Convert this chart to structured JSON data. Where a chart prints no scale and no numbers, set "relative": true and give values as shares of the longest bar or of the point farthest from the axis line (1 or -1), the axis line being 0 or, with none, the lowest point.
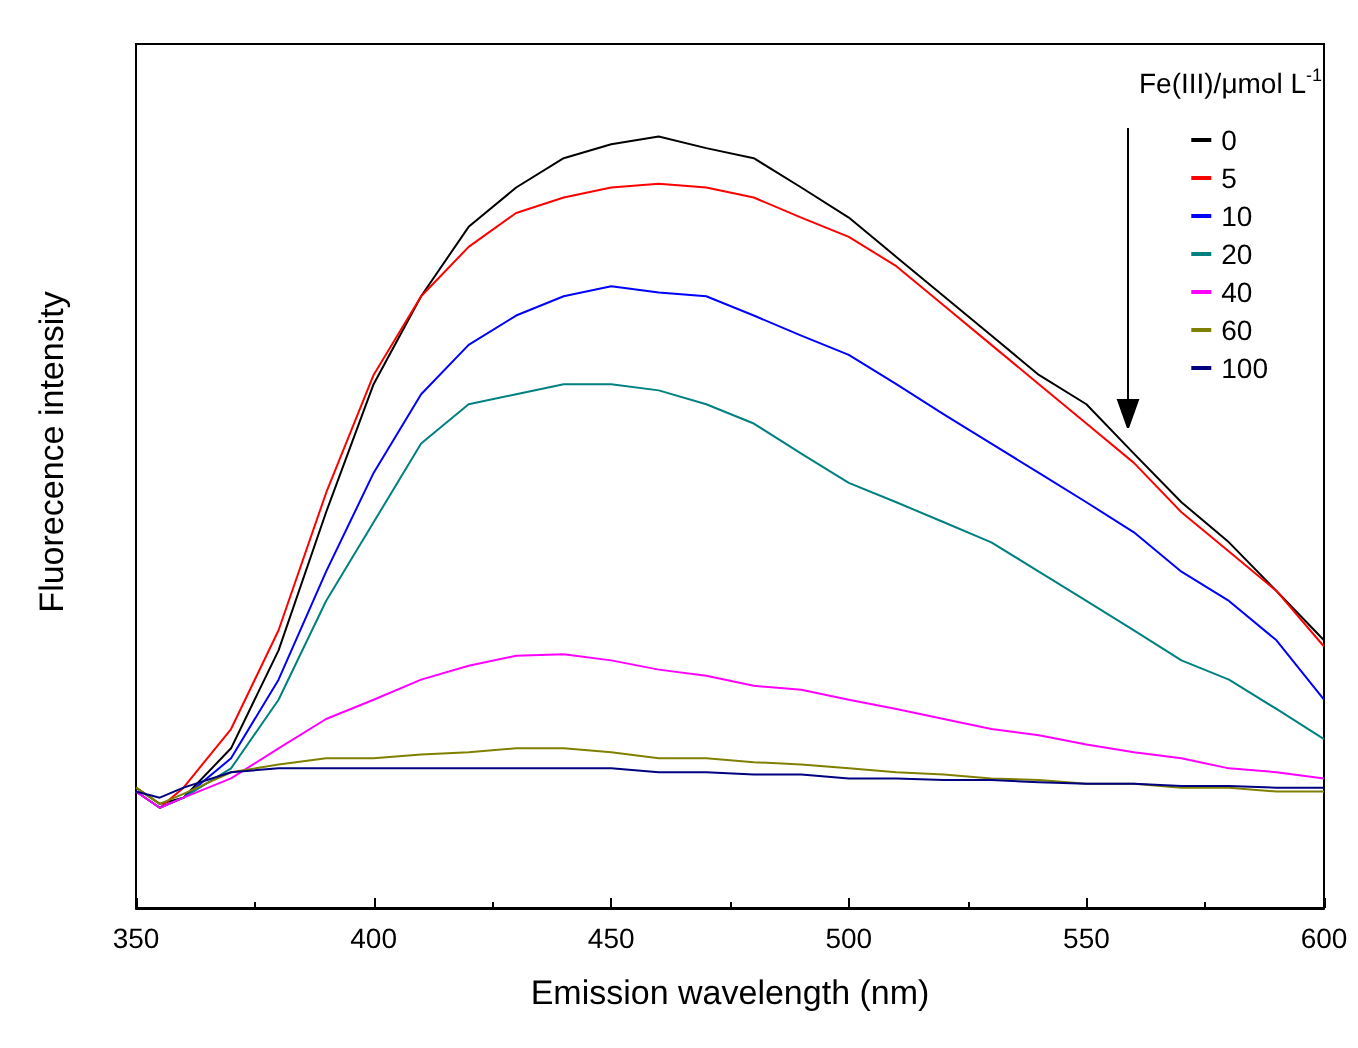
{
  "chart_data": {
    "type": "line",
    "relative": true,
    "xlabel": "Emission wavelength (nm)",
    "ylabel": "Fluorecence intensity",
    "legend_title": "Fe(III)/μmol L$^{-1}$",
    "legend": "top right",
    "grid": false,
    "marker": "none",
    "line_style": "solid",
    "x": [
      350,
      355,
      360,
      370,
      380,
      390,
      400,
      410,
      420,
      430,
      440,
      450,
      460,
      470,
      480,
      490,
      500,
      510,
      520,
      530,
      540,
      550,
      560,
      570,
      580,
      590,
      600
    ],
    "xlim": [
      350,
      600
    ],
    "xticks": [
      350,
      400,
      450,
      500,
      550,
      600
    ],
    "series": [
      {
        "name": "0",
        "color": "#000000",
        "values": [
          0.156,
          0.135,
          0.143,
          0.207,
          0.334,
          0.513,
          0.679,
          0.793,
          0.883,
          0.934,
          0.972,
          0.99,
          1,
          0.985,
          0.972,
          0.934,
          0.895,
          0.844,
          0.793,
          0.742,
          0.691,
          0.653,
          0.589,
          0.526,
          0.474,
          0.411,
          0.347
        ]
      },
      {
        "name": "5",
        "color": "#ff0000",
        "values": [
          0.151,
          0.13,
          0.156,
          0.232,
          0.36,
          0.538,
          0.691,
          0.793,
          0.857,
          0.901,
          0.921,
          0.934,
          0.939,
          0.934,
          0.921,
          0.895,
          0.87,
          0.832,
          0.781,
          0.73,
          0.679,
          0.628,
          0.577,
          0.513,
          0.462,
          0.411,
          0.339
        ]
      },
      {
        "name": "10",
        "color": "#0000ff",
        "values": [
          0.151,
          0.13,
          0.143,
          0.194,
          0.296,
          0.436,
          0.564,
          0.666,
          0.73,
          0.768,
          0.793,
          0.806,
          0.798,
          0.793,
          0.768,
          0.742,
          0.717,
          0.679,
          0.64,
          0.602,
          0.564,
          0.526,
          0.487,
          0.436,
          0.398,
          0.347,
          0.27
        ]
      },
      {
        "name": "20",
        "color": "#008080",
        "values": [
          0.151,
          0.13,
          0.143,
          0.181,
          0.27,
          0.398,
          0.5,
          0.602,
          0.653,
          0.666,
          0.679,
          0.679,
          0.671,
          0.653,
          0.628,
          0.589,
          0.551,
          0.526,
          0.5,
          0.474,
          0.436,
          0.398,
          0.36,
          0.321,
          0.296,
          0.258,
          0.219
        ]
      },
      {
        "name": "40",
        "color": "#ff00ff",
        "values": [
          0.151,
          0.13,
          0.143,
          0.168,
          0.207,
          0.245,
          0.27,
          0.296,
          0.314,
          0.327,
          0.329,
          0.321,
          0.309,
          0.301,
          0.288,
          0.283,
          0.27,
          0.258,
          0.245,
          0.232,
          0.224,
          0.212,
          0.202,
          0.194,
          0.181,
          0.176,
          0.168
        ]
      },
      {
        "name": "60",
        "color": "#808000",
        "values": [
          0.156,
          0.135,
          0.148,
          0.176,
          0.186,
          0.194,
          0.194,
          0.199,
          0.202,
          0.207,
          0.207,
          0.202,
          0.194,
          0.194,
          0.189,
          0.186,
          0.181,
          0.176,
          0.173,
          0.168,
          0.166,
          0.161,
          0.161,
          0.156,
          0.156,
          0.151,
          0.151
        ]
      },
      {
        "name": "100",
        "color": "#000080",
        "values": [
          0.151,
          0.143,
          0.156,
          0.176,
          0.181,
          0.181,
          0.181,
          0.181,
          0.181,
          0.181,
          0.181,
          0.181,
          0.176,
          0.176,
          0.173,
          0.173,
          0.168,
          0.168,
          0.166,
          0.166,
          0.163,
          0.161,
          0.161,
          0.158,
          0.158,
          0.156,
          0.156
        ]
      }
    ]
  }
}
